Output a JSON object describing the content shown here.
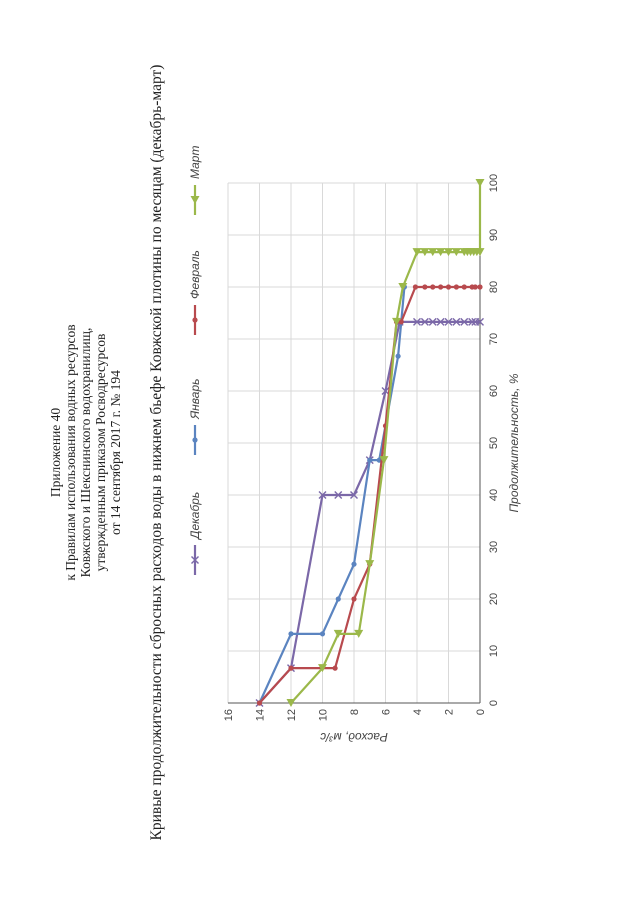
{
  "header": {
    "appendix": "Приложение 40",
    "line1": "к Правилам использования водных ресурсов",
    "line2": "Ковжского и Шекснинского водохранилищ,",
    "line3": "утвержденным приказом Росводресурсов",
    "line4": "от 14 сентября 2017 г. № 194"
  },
  "colors": {
    "dec": "#7B68A8",
    "jan": "#5B84C0",
    "feb": "#B84A4E",
    "mar": "#9BB84A",
    "grid": "#d9d9d9",
    "axis": "#555555"
  },
  "chart_data": {
    "type": "line",
    "title": "Кривые продолжительности сбросных расходов воды в нижнем бьефе Ковжской плотины по месяцам (декабрь-март)",
    "xlabel": "Продолжительность, %",
    "ylabel": "Расход, м³/с",
    "xlim": [
      0,
      100
    ],
    "ylim": [
      0,
      16
    ],
    "xticks": [
      "0",
      "10",
      "20",
      "30",
      "40",
      "50",
      "60",
      "70",
      "80",
      "90",
      "100"
    ],
    "yticks": [
      "0",
      "2",
      "4",
      "6",
      "8",
      "10",
      "12",
      "14",
      "16"
    ],
    "legend_position": "top",
    "series": [
      {
        "name": "Декабрь",
        "key": "dec",
        "marker": "x",
        "points": [
          [
            0,
            14
          ],
          [
            6.7,
            12
          ],
          [
            40,
            10
          ],
          [
            40,
            9
          ],
          [
            40,
            8
          ],
          [
            46.7,
            7
          ],
          [
            60,
            6
          ],
          [
            73.3,
            5.1
          ],
          [
            73.3,
            4
          ],
          [
            73.3,
            3.5
          ],
          [
            73.3,
            3
          ],
          [
            73.3,
            2.5
          ],
          [
            73.3,
            2
          ],
          [
            73.3,
            1.5
          ],
          [
            73.3,
            1
          ],
          [
            73.3,
            0.5
          ],
          [
            73.3,
            0.3
          ],
          [
            73.3,
            0
          ]
        ]
      },
      {
        "name": "Январь",
        "key": "jan",
        "marker": "dot",
        "points": [
          [
            0,
            14
          ],
          [
            13.3,
            12
          ],
          [
            13.3,
            10
          ],
          [
            20,
            9
          ],
          [
            26.7,
            8
          ],
          [
            46.7,
            7
          ],
          [
            46.7,
            6.4
          ],
          [
            66.7,
            5.2
          ],
          [
            73.3,
            5
          ],
          [
            80,
            4.8
          ]
        ]
      },
      {
        "name": "Февраль",
        "key": "feb",
        "marker": "dot",
        "points": [
          [
            0,
            14
          ],
          [
            6.7,
            12
          ],
          [
            6.7,
            9.2
          ],
          [
            20,
            8
          ],
          [
            26.7,
            7
          ],
          [
            53.3,
            6
          ],
          [
            73.3,
            5.3
          ],
          [
            73.3,
            5
          ],
          [
            80,
            4.1
          ],
          [
            80,
            3.5
          ],
          [
            80,
            3
          ],
          [
            80,
            2.5
          ],
          [
            80,
            2
          ],
          [
            80,
            1.5
          ],
          [
            80,
            1
          ],
          [
            80,
            0.5
          ],
          [
            80,
            0.3
          ],
          [
            80,
            0
          ]
        ]
      },
      {
        "name": "Март",
        "key": "mar",
        "marker": "tri",
        "points": [
          [
            0,
            12
          ],
          [
            6.7,
            10
          ],
          [
            13.3,
            9
          ],
          [
            13.3,
            7.7
          ],
          [
            26.7,
            7
          ],
          [
            46.7,
            6.1
          ],
          [
            73.3,
            5.3
          ],
          [
            80,
            4.9
          ],
          [
            86.7,
            4
          ],
          [
            86.7,
            3.5
          ],
          [
            86.7,
            3
          ],
          [
            86.7,
            2.5
          ],
          [
            86.7,
            2
          ],
          [
            86.7,
            1.5
          ],
          [
            86.7,
            1
          ],
          [
            86.7,
            0.8
          ],
          [
            86.7,
            0.6
          ],
          [
            86.7,
            0.4
          ],
          [
            86.7,
            0.2
          ],
          [
            86.7,
            0
          ],
          [
            100,
            0
          ]
        ]
      }
    ]
  }
}
